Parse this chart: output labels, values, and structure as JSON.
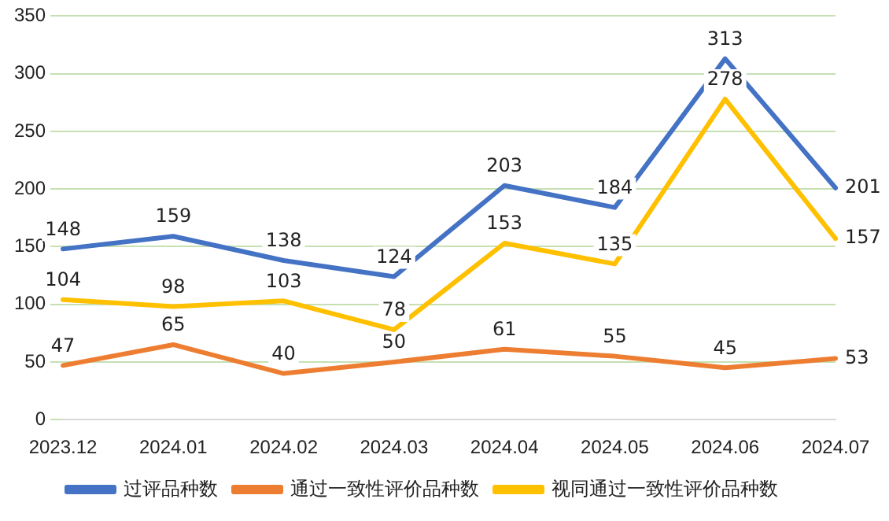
{
  "chart_data": {
    "type": "line",
    "categories": [
      "2023.12",
      "2024.01",
      "2024.02",
      "2024.03",
      "2024.04",
      "2024.05",
      "2024.06",
      "2024.07"
    ],
    "series": [
      {
        "name": "过评品种数",
        "color": "#4472c4",
        "values": [
          148,
          159,
          138,
          124,
          203,
          184,
          313,
          201
        ]
      },
      {
        "name": "通过一致性评价品种数",
        "color": "#ed7d31",
        "values": [
          47,
          65,
          40,
          50,
          61,
          55,
          45,
          53
        ]
      },
      {
        "name": "视同通过一致性评价品种数",
        "color": "#ffc000",
        "values": [
          104,
          98,
          103,
          78,
          153,
          135,
          278,
          157
        ]
      }
    ],
    "ylim": [
      0,
      350
    ],
    "yticks": [
      0,
      50,
      100,
      150,
      200,
      250,
      300,
      350
    ],
    "grid": "y",
    "legend": "bottom",
    "data_labels": true,
    "marker": "none",
    "line_style": "solid"
  }
}
